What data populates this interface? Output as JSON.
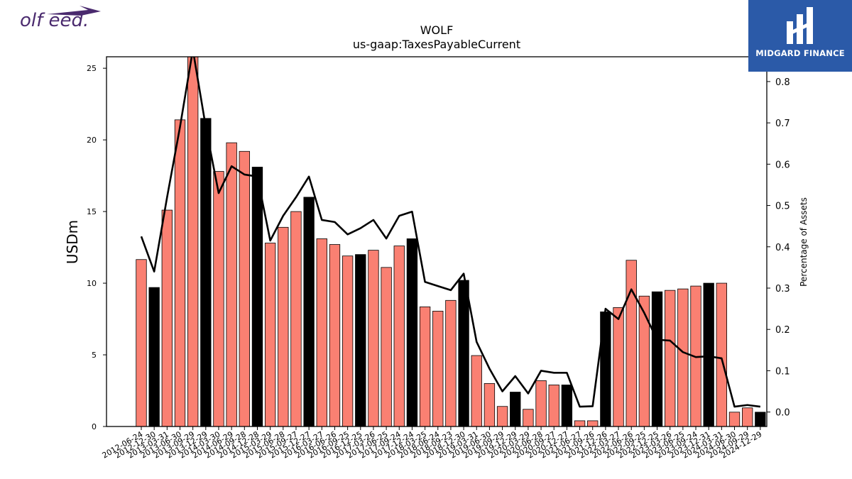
{
  "logos": {
    "left_text": "olf eed.",
    "right_text": "MIDGARD FINANCE"
  },
  "chart_data": {
    "type": "bar",
    "title": "WOLF",
    "subtitle": "us-gaap:TaxesPayableCurrent",
    "ylabel": "USDm",
    "y2label": "Percentage of Assets",
    "ylim": [
      0,
      25.8
    ],
    "y2lim": [
      -0.035,
      0.86
    ],
    "yticks": [
      0,
      5,
      10,
      15,
      20,
      25
    ],
    "y2ticks": [
      0.0,
      0.1,
      0.2,
      0.3,
      0.4,
      0.5,
      0.6,
      0.7,
      0.8
    ],
    "y2tick_labels": [
      "0.0",
      "0.1",
      "0.2",
      "0.3",
      "0.4",
      "0.5",
      "0.6",
      "0.7",
      "0.8"
    ],
    "colors": {
      "quarter": "#fa8072",
      "fiscal_year_end": "#000000",
      "line": "#000000"
    },
    "categories": [
      "2012-06-24",
      "2012-12-30",
      "2013-03-31",
      "2013-06-30",
      "2013-09-29",
      "2013-12-29",
      "2014-03-30",
      "2014-06-29",
      "2014-09-28",
      "2014-12-28",
      "2015-03-29",
      "2015-06-28",
      "2015-09-27",
      "2015-12-27",
      "2016-03-27",
      "2016-06-26",
      "2016-09-25",
      "2016-12-25",
      "2017-03-26",
      "2017-06-25",
      "2017-09-24",
      "2017-12-24",
      "2018-03-25",
      "2018-06-24",
      "2018-09-23",
      "2018-12-30",
      "2019-03-31",
      "2019-06-30",
      "2019-09-29",
      "2019-12-29",
      "2020-03-29",
      "2020-06-28",
      "2020-09-27",
      "2020-12-27",
      "2021-06-27",
      "2021-09-26",
      "2021-12-26",
      "2022-03-27",
      "2022-06-26",
      "2022-09-25",
      "2022-12-25",
      "2023-03-26",
      "2023-06-25",
      "2023-09-24",
      "2023-12-31",
      "2024-03-31",
      "2024-06-30",
      "2024-09-29",
      "2024-12-29"
    ],
    "tick_labels": [
      "2012-06-24",
      "2012-12-30",
      "2013-03-31",
      "2013-06-30",
      "2013-09-29",
      "2013-12-29",
      "2014-03-30",
      "2014-06-29",
      "2014-09-28",
      "2014-12-28",
      "2015-03-29",
      "2015-06-28",
      "2015-09-27",
      "2015-12-27",
      "2016-03-27",
      "2016-06-26",
      "2016-09-25",
      "2016-12-25",
      "2017-03-26",
      "2017-06-25",
      "2017-09-24",
      "2017-12-24",
      "2018-03-25",
      "2018-06-24",
      "2018-09-23",
      "2018-12-30",
      "2019-03-31",
      "2019-06-30",
      "2019-09-29",
      "2019-12-29",
      "2020-03-29",
      "2020-06-28",
      "2020-09-27",
      "2020-12-27",
      "2021-06-27",
      "2021-09-26",
      "2021-12-26",
      "2022-03-27",
      "2022-06-26",
      "2022-09-25",
      "2022-12-25",
      "2023-03-26",
      "2023-06-25",
      "2023-09-24",
      "2023-12-31",
      "2024-03-31",
      "2024-06-30",
      "2024-09-29",
      "2024-12-29"
    ],
    "values": [
      11.65,
      9.7,
      15.1,
      21.4,
      26.0,
      21.5,
      17.8,
      19.8,
      19.2,
      18.1,
      12.8,
      13.9,
      15.0,
      16.0,
      13.1,
      12.7,
      11.9,
      12.0,
      12.3,
      11.1,
      12.6,
      13.1,
      8.35,
      8.05,
      8.8,
      10.2,
      4.95,
      3.0,
      1.4,
      2.4,
      1.2,
      3.2,
      2.9,
      2.9,
      0.4,
      0.4,
      8.0,
      8.3,
      11.6,
      9.1,
      9.4,
      9.5,
      9.6,
      9.8,
      10.0,
      10.0,
      1.0,
      1.3,
      1.0
    ],
    "fiscal_year_end": [
      false,
      true,
      false,
      false,
      false,
      true,
      false,
      false,
      false,
      true,
      false,
      false,
      false,
      true,
      false,
      false,
      false,
      true,
      false,
      false,
      false,
      true,
      false,
      false,
      false,
      true,
      false,
      false,
      false,
      true,
      false,
      false,
      false,
      true,
      false,
      false,
      true,
      false,
      false,
      false,
      true,
      false,
      false,
      false,
      true,
      false,
      false,
      false,
      true
    ],
    "line_values": [
      0.425,
      0.34,
      0.52,
      0.69,
      0.92,
      0.69,
      0.53,
      0.595,
      0.575,
      0.57,
      0.415,
      0.475,
      0.52,
      0.57,
      0.465,
      0.46,
      0.43,
      0.445,
      0.465,
      0.42,
      0.475,
      0.485,
      0.315,
      0.305,
      0.295,
      0.335,
      0.17,
      0.105,
      0.05,
      0.087,
      0.045,
      0.1,
      0.095,
      0.095,
      0.013,
      0.014,
      0.25,
      0.225,
      0.297,
      0.24,
      0.175,
      0.173,
      0.145,
      0.133,
      0.135,
      0.13,
      0.013,
      0.017,
      0.013
    ]
  }
}
